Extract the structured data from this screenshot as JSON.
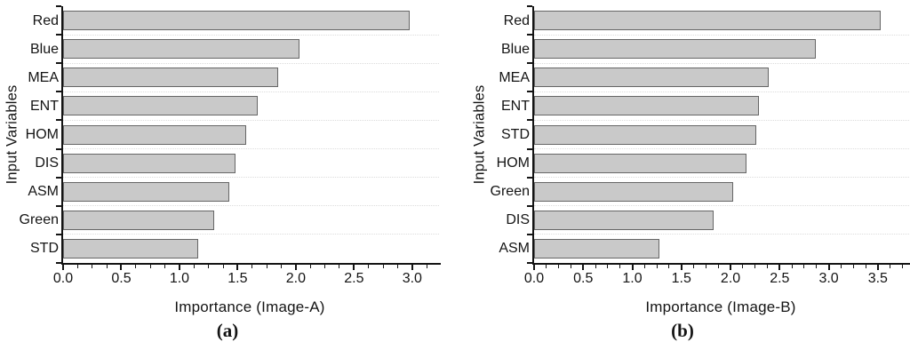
{
  "chart_data": [
    {
      "type": "bar",
      "orientation": "horizontal",
      "panel_caption": "(a)",
      "title": "",
      "xlabel": "Importance (Image-A)",
      "ylabel": "Input Variables",
      "categories": [
        "Red",
        "Blue",
        "MEA",
        "ENT",
        "HOM",
        "DIS",
        "ASM",
        "Green",
        "STD"
      ],
      "values": [
        2.98,
        2.03,
        1.85,
        1.67,
        1.57,
        1.48,
        1.43,
        1.3,
        1.16
      ],
      "xlim": [
        0,
        3.2
      ],
      "xtick_major_step": 0.5,
      "xtick_minor_step": 0.125,
      "xtick_labels": [
        "0.0",
        "0.5",
        "1.0",
        "1.5",
        "2.0",
        "2.5",
        "3.0"
      ],
      "grid": "horizontal-dotted-at-category-boundaries",
      "legend": "none",
      "bar_fill": "#c9c9c9",
      "bar_border": "#666666",
      "axis_color": "#141414",
      "grid_color": "#dcdcdc"
    },
    {
      "type": "bar",
      "orientation": "horizontal",
      "panel_caption": "(b)",
      "title": "",
      "xlabel": "Importance (Image-B)",
      "ylabel": "Input Variables",
      "categories": [
        "Red",
        "Blue",
        "MEA",
        "ENT",
        "STD",
        "HOM",
        "Green",
        "DIS",
        "ASM"
      ],
      "values": [
        3.53,
        2.87,
        2.39,
        2.29,
        2.26,
        2.16,
        2.03,
        1.83,
        1.28
      ],
      "xlim": [
        0,
        3.8
      ],
      "xtick_major_step": 0.5,
      "xtick_minor_step": 0.125,
      "xtick_labels": [
        "0.0",
        "0.5",
        "1.0",
        "1.5",
        "2.0",
        "2.5",
        "3.0",
        "3.5"
      ],
      "grid": "horizontal-dotted-at-category-boundaries",
      "legend": "none",
      "bar_fill": "#c9c9c9",
      "bar_border": "#666666",
      "axis_color": "#141414",
      "grid_color": "#dcdcdc"
    }
  ]
}
